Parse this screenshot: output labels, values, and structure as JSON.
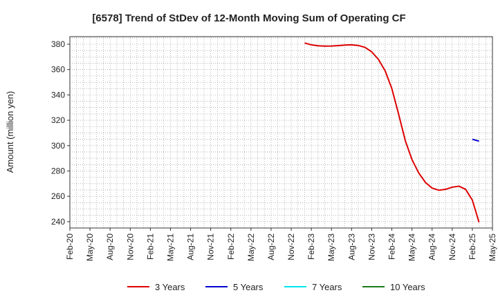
{
  "chart_data": {
    "type": "line",
    "title": "[6578]  Trend of StDev of 12-Month Moving Sum of Operating CF",
    "xlabel": "",
    "ylabel": "Amount (million yen)",
    "x_ticks": [
      "Feb-20",
      "May-20",
      "Aug-20",
      "Nov-20",
      "Feb-21",
      "May-21",
      "Aug-21",
      "Nov-21",
      "Feb-22",
      "May-22",
      "Aug-22",
      "Nov-22",
      "Feb-23",
      "May-23",
      "Aug-23",
      "Nov-23",
      "Feb-24",
      "May-24",
      "Aug-24",
      "Nov-24",
      "Feb-25",
      "May-25"
    ],
    "x_range": [
      "2020-02",
      "2025-05"
    ],
    "y_ticks": [
      240,
      260,
      280,
      300,
      320,
      340,
      360,
      380
    ],
    "ylim": [
      235,
      386
    ],
    "grid": true,
    "legend_placement": "bottom",
    "series": [
      {
        "name": "3 Years",
        "color": "#dd0000",
        "points": [
          [
            "2023-01",
            381
          ],
          [
            "2023-02",
            379.5
          ],
          [
            "2023-03",
            378.8
          ],
          [
            "2023-04",
            378.5
          ],
          [
            "2023-05",
            378.6
          ],
          [
            "2023-06",
            378.9
          ],
          [
            "2023-07",
            379.3
          ],
          [
            "2023-08",
            379.5
          ],
          [
            "2023-09",
            379
          ],
          [
            "2023-10",
            377.5
          ],
          [
            "2023-11",
            374
          ],
          [
            "2023-12",
            368
          ],
          [
            "2024-01",
            359
          ],
          [
            "2024-02",
            345
          ],
          [
            "2024-03",
            325
          ],
          [
            "2024-04",
            304
          ],
          [
            "2024-05",
            289
          ],
          [
            "2024-06",
            278.5
          ],
          [
            "2024-07",
            271
          ],
          [
            "2024-08",
            266.5
          ],
          [
            "2024-09",
            264.8
          ],
          [
            "2024-10",
            265.5
          ],
          [
            "2024-11",
            267.2
          ],
          [
            "2024-12",
            268
          ],
          [
            "2025-01",
            265.5
          ],
          [
            "2025-02",
            257
          ],
          [
            "2025-03",
            239.5
          ]
        ]
      },
      {
        "name": "5 Years",
        "color": "#0000cc",
        "points": [
          [
            "2025-02",
            305
          ],
          [
            "2025-03",
            303.5
          ]
        ]
      },
      {
        "name": "7 Years",
        "color": "#00e5ee",
        "points": []
      },
      {
        "name": "10 Years",
        "color": "#1a7a1a",
        "points": []
      }
    ]
  }
}
